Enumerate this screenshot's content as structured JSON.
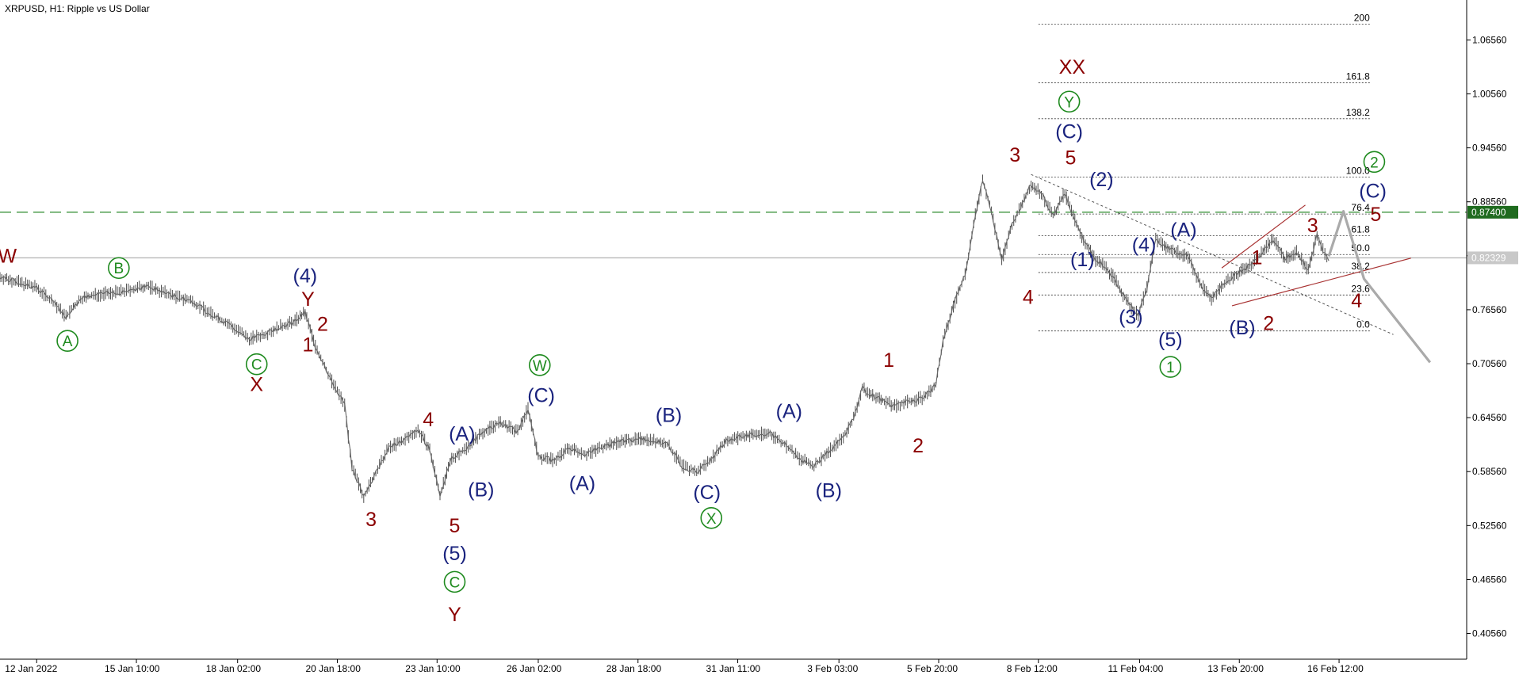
{
  "chart_data": {
    "type": "line",
    "title": "XRPUSD, H1:  Ripple vs US Dollar",
    "ylim": [
      0.377,
      1.11
    ],
    "xlim": [
      0,
      100
    ],
    "grid": false,
    "y_ticks": [
      "1.06560",
      "1.00560",
      "0.94560",
      "0.88560",
      "0.82560",
      "0.76560",
      "0.70560",
      "0.64560",
      "0.58560",
      "0.52560",
      "0.46560",
      "0.40560"
    ],
    "x_ticks": [
      {
        "x": 2.5,
        "label": "12 Jan 2022"
      },
      {
        "x": 9.3,
        "label": "15 Jan 10:00"
      },
      {
        "x": 16.2,
        "label": "18 Jan 02:00"
      },
      {
        "x": 23.0,
        "label": "20 Jan 18:00"
      },
      {
        "x": 29.8,
        "label": "23 Jan 10:00"
      },
      {
        "x": 36.7,
        "label": "26 Jan 02:00"
      },
      {
        "x": 43.5,
        "label": "28 Jan 18:00"
      },
      {
        "x": 50.3,
        "label": "31 Jan 11:00"
      },
      {
        "x": 57.2,
        "label": "3 Feb 03:00"
      },
      {
        "x": 64.0,
        "label": "5 Feb 20:00"
      },
      {
        "x": 70.8,
        "label": "8 Feb 12:00"
      },
      {
        "x": 77.7,
        "label": "11 Feb 04:00"
      },
      {
        "x": 84.5,
        "label": "13 Feb 20:00"
      },
      {
        "x": 91.3,
        "label": "16 Feb 12:00"
      }
    ],
    "series": [
      {
        "color": "#666666",
        "values": [
          [
            0,
            0.802
          ],
          [
            1.5,
            0.795
          ],
          [
            2.5,
            0.79
          ],
          [
            3.5,
            0.776
          ],
          [
            4.5,
            0.758
          ],
          [
            5.5,
            0.778
          ],
          [
            6.5,
            0.782
          ],
          [
            8.0,
            0.785
          ],
          [
            9.0,
            0.788
          ],
          [
            10.0,
            0.792
          ],
          [
            11.0,
            0.786
          ],
          [
            12.0,
            0.78
          ],
          [
            13.0,
            0.776
          ],
          [
            14.0,
            0.765
          ],
          [
            15.0,
            0.755
          ],
          [
            16.0,
            0.745
          ],
          [
            17.0,
            0.733
          ],
          [
            18.0,
            0.738
          ],
          [
            19.0,
            0.746
          ],
          [
            20.0,
            0.752
          ],
          [
            20.8,
            0.762
          ],
          [
            21.5,
            0.725
          ],
          [
            22.5,
            0.69
          ],
          [
            23.5,
            0.66
          ],
          [
            24.0,
            0.59
          ],
          [
            24.8,
            0.558
          ],
          [
            25.5,
            0.58
          ],
          [
            26.5,
            0.612
          ],
          [
            27.5,
            0.62
          ],
          [
            28.5,
            0.632
          ],
          [
            29.3,
            0.61
          ],
          [
            30.0,
            0.56
          ],
          [
            30.8,
            0.6
          ],
          [
            31.8,
            0.612
          ],
          [
            32.8,
            0.628
          ],
          [
            34.0,
            0.64
          ],
          [
            35.3,
            0.63
          ],
          [
            36.0,
            0.656
          ],
          [
            36.7,
            0.602
          ],
          [
            37.8,
            0.598
          ],
          [
            38.8,
            0.612
          ],
          [
            40.0,
            0.605
          ],
          [
            41.0,
            0.613
          ],
          [
            42.5,
            0.62
          ],
          [
            44.0,
            0.622
          ],
          [
            45.5,
            0.616
          ],
          [
            46.5,
            0.592
          ],
          [
            47.5,
            0.585
          ],
          [
            48.5,
            0.6
          ],
          [
            49.5,
            0.62
          ],
          [
            51.0,
            0.626
          ],
          [
            52.5,
            0.628
          ],
          [
            53.5,
            0.616
          ],
          [
            54.5,
            0.6
          ],
          [
            55.5,
            0.592
          ],
          [
            56.5,
            0.608
          ],
          [
            57.5,
            0.624
          ],
          [
            58.2,
            0.645
          ],
          [
            58.8,
            0.678
          ],
          [
            59.5,
            0.67
          ],
          [
            60.3,
            0.664
          ],
          [
            61.0,
            0.658
          ],
          [
            62.0,
            0.664
          ],
          [
            63.0,
            0.668
          ],
          [
            63.8,
            0.682
          ],
          [
            64.3,
            0.73
          ],
          [
            65.0,
            0.77
          ],
          [
            65.8,
            0.805
          ],
          [
            66.5,
            0.87
          ],
          [
            67.0,
            0.91
          ],
          [
            67.6,
            0.875
          ],
          [
            68.3,
            0.82
          ],
          [
            69.0,
            0.86
          ],
          [
            69.6,
            0.88
          ],
          [
            70.3,
            0.905
          ],
          [
            71.0,
            0.895
          ],
          [
            71.8,
            0.87
          ],
          [
            72.6,
            0.895
          ],
          [
            73.4,
            0.86
          ],
          [
            74.0,
            0.84
          ],
          [
            74.7,
            0.82
          ],
          [
            75.3,
            0.815
          ],
          [
            76.0,
            0.8
          ],
          [
            76.8,
            0.775
          ],
          [
            77.6,
            0.76
          ],
          [
            78.2,
            0.79
          ],
          [
            78.8,
            0.845
          ],
          [
            79.5,
            0.835
          ],
          [
            80.2,
            0.83
          ],
          [
            81.0,
            0.825
          ],
          [
            81.8,
            0.795
          ],
          [
            82.6,
            0.778
          ],
          [
            83.5,
            0.795
          ],
          [
            84.3,
            0.805
          ],
          [
            85.2,
            0.815
          ],
          [
            86.0,
            0.828
          ],
          [
            86.8,
            0.845
          ],
          [
            87.6,
            0.822
          ],
          [
            88.4,
            0.83
          ],
          [
            89.2,
            0.81
          ],
          [
            89.8,
            0.848
          ],
          [
            90.2,
            0.832
          ],
          [
            90.6,
            0.82
          ]
        ]
      },
      {
        "color": "#aaaaaa",
        "values": [
          [
            90.6,
            0.825
          ],
          [
            91.6,
            0.875
          ],
          [
            93.0,
            0.8
          ],
          [
            97.5,
            0.707
          ]
        ]
      }
    ],
    "horizontal_lines": [
      {
        "y": 0.874,
        "label": "0.87400",
        "style": "dashed",
        "color": "#2e8b2e"
      },
      {
        "y": 0.8233,
        "label": "0.82329",
        "style": "solid",
        "color": "#b8b8b8"
      }
    ],
    "fibonacci_levels": [
      {
        "label": "200",
        "y": 1.083
      },
      {
        "label": "161.8",
        "y": 1.018
      },
      {
        "label": "138.2",
        "y": 0.978
      },
      {
        "label": "100.0",
        "y": 0.913
      },
      {
        "label": "76.4",
        "y": 0.872
      },
      {
        "label": "61.8",
        "y": 0.848
      },
      {
        "label": "50.0",
        "y": 0.827
      },
      {
        "label": "38.2",
        "y": 0.807
      },
      {
        "label": "23.6",
        "y": 0.782
      },
      {
        "label": "0.0",
        "y": 0.742
      }
    ],
    "trend_lines": [
      {
        "color": "#555555",
        "style": "dotted",
        "from": [
          70.3,
          0.916
        ],
        "to": [
          95.0,
          0.738
        ]
      },
      {
        "color": "#a83232",
        "style": "solid",
        "from": [
          83.3,
          0.812
        ],
        "to": [
          89.0,
          0.882
        ]
      },
      {
        "color": "#a83232",
        "style": "solid",
        "from": [
          84.0,
          0.77
        ],
        "to": [
          96.2,
          0.823
        ]
      }
    ],
    "annotations": [
      {
        "text": "W",
        "x": 0.5,
        "y": 0.826,
        "color": "#8b0000"
      },
      {
        "text": "A",
        "x": 4.6,
        "y": 0.731,
        "color": "#1e8a1e",
        "circled": true
      },
      {
        "text": "B",
        "x": 8.1,
        "y": 0.812,
        "color": "#1e8a1e",
        "circled": true
      },
      {
        "text": "C",
        "x": 17.5,
        "y": 0.705,
        "color": "#1e8a1e",
        "circled": true
      },
      {
        "text": "X",
        "x": 17.5,
        "y": 0.683,
        "color": "#8b0000"
      },
      {
        "text": "(4)",
        "x": 20.8,
        "y": 0.804,
        "color": "#1a237e"
      },
      {
        "text": "Y",
        "x": 21.0,
        "y": 0.778,
        "color": "#8b0000"
      },
      {
        "text": "2",
        "x": 22.0,
        "y": 0.75,
        "color": "#8b0000"
      },
      {
        "text": "1",
        "x": 21.0,
        "y": 0.727,
        "color": "#8b0000"
      },
      {
        "text": "3",
        "x": 25.3,
        "y": 0.533,
        "color": "#8b0000"
      },
      {
        "text": "4",
        "x": 29.2,
        "y": 0.644,
        "color": "#8b0000"
      },
      {
        "text": "(A)",
        "x": 31.5,
        "y": 0.628,
        "color": "#1a237e"
      },
      {
        "text": "(B)",
        "x": 32.8,
        "y": 0.566,
        "color": "#1a237e"
      },
      {
        "text": "5",
        "x": 31.0,
        "y": 0.526,
        "color": "#8b0000"
      },
      {
        "text": "(5)",
        "x": 31.0,
        "y": 0.495,
        "color": "#1a237e"
      },
      {
        "text": "C",
        "x": 31.0,
        "y": 0.463,
        "color": "#1e8a1e",
        "circled": true
      },
      {
        "text": "Y",
        "x": 31.0,
        "y": 0.427,
        "color": "#8b0000"
      },
      {
        "text": "W",
        "x": 36.8,
        "y": 0.704,
        "color": "#1e8a1e",
        "circled": true
      },
      {
        "text": "(C)",
        "x": 36.9,
        "y": 0.671,
        "color": "#1a237e"
      },
      {
        "text": "(A)",
        "x": 39.7,
        "y": 0.573,
        "color": "#1a237e"
      },
      {
        "text": "(B)",
        "x": 45.6,
        "y": 0.649,
        "color": "#1a237e"
      },
      {
        "text": "(C)",
        "x": 48.2,
        "y": 0.563,
        "color": "#1a237e"
      },
      {
        "text": "X",
        "x": 48.5,
        "y": 0.534,
        "color": "#1e8a1e",
        "circled": true
      },
      {
        "text": "(A)",
        "x": 53.8,
        "y": 0.653,
        "color": "#1a237e"
      },
      {
        "text": "(B)",
        "x": 56.5,
        "y": 0.565,
        "color": "#1a237e"
      },
      {
        "text": "1",
        "x": 60.6,
        "y": 0.71,
        "color": "#8b0000"
      },
      {
        "text": "2",
        "x": 62.6,
        "y": 0.615,
        "color": "#8b0000"
      },
      {
        "text": "3",
        "x": 69.2,
        "y": 0.938,
        "color": "#8b0000"
      },
      {
        "text": "4",
        "x": 70.1,
        "y": 0.78,
        "color": "#8b0000"
      },
      {
        "text": "XX",
        "x": 73.1,
        "y": 1.036,
        "color": "#8b0000"
      },
      {
        "text": "Y",
        "x": 72.9,
        "y": 0.997,
        "color": "#1e8a1e",
        "circled": true
      },
      {
        "text": "(C)",
        "x": 72.9,
        "y": 0.964,
        "color": "#1a237e"
      },
      {
        "text": "5",
        "x": 73.0,
        "y": 0.935,
        "color": "#8b0000"
      },
      {
        "text": "(2)",
        "x": 75.1,
        "y": 0.911,
        "color": "#1a237e"
      },
      {
        "text": "(1)",
        "x": 73.8,
        "y": 0.822,
        "color": "#1a237e"
      },
      {
        "text": "(4)",
        "x": 78.0,
        "y": 0.838,
        "color": "#1a237e"
      },
      {
        "text": "(A)",
        "x": 80.7,
        "y": 0.855,
        "color": "#1a237e"
      },
      {
        "text": "(3)",
        "x": 77.1,
        "y": 0.758,
        "color": "#1a237e"
      },
      {
        "text": "(5)",
        "x": 79.8,
        "y": 0.733,
        "color": "#1a237e"
      },
      {
        "text": "1",
        "x": 79.8,
        "y": 0.702,
        "color": "#1e8a1e",
        "circled": true
      },
      {
        "text": "(B)",
        "x": 84.7,
        "y": 0.746,
        "color": "#1a237e"
      },
      {
        "text": "2",
        "x": 86.5,
        "y": 0.751,
        "color": "#8b0000"
      },
      {
        "text": "1",
        "x": 85.7,
        "y": 0.824,
        "color": "#8b0000"
      },
      {
        "text": "3",
        "x": 89.5,
        "y": 0.86,
        "color": "#8b0000"
      },
      {
        "text": "4",
        "x": 92.5,
        "y": 0.776,
        "color": "#8b0000"
      },
      {
        "text": "5",
        "x": 93.8,
        "y": 0.872,
        "color": "#8b0000"
      },
      {
        "text": "(C)",
        "x": 93.6,
        "y": 0.898,
        "color": "#1a237e"
      },
      {
        "text": "2",
        "x": 93.7,
        "y": 0.93,
        "color": "#1e8a1e",
        "circled": true
      }
    ]
  }
}
